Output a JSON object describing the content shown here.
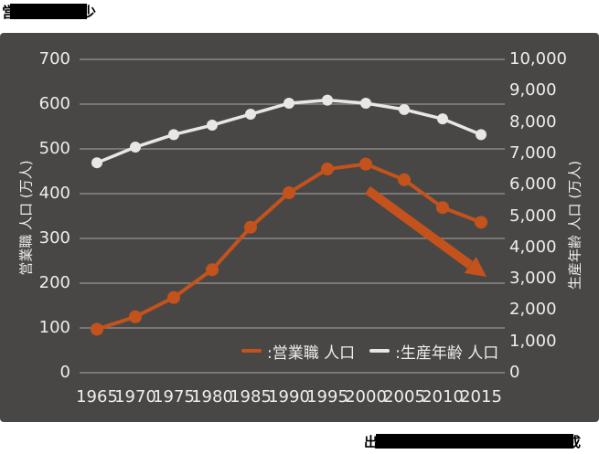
{
  "title": {
    "visible_start_char": "営",
    "visible_end_char": "少",
    "note": "title mostly covered by black redaction bar"
  },
  "source": {
    "visible_start_char": "出",
    "visible_end_char": "成",
    "note": "source line mostly covered by black redaction bar"
  },
  "colors": {
    "panel_bg": "#494745",
    "grid": "#8b8987",
    "orange_series": "#c4521c",
    "white_series": "#e9e7e5",
    "tick_text": "#efeeec",
    "redaction": "#000000"
  },
  "chart_data": {
    "type": "line",
    "categories": [
      "1965",
      "1970",
      "1975",
      "1980",
      "1985",
      "1990",
      "1995",
      "2000",
      "2005",
      "2010",
      "2015"
    ],
    "series": [
      {
        "name": "営業職 人口",
        "yaxis": "left",
        "color": "#c4521c",
        "values": [
          97,
          125,
          168,
          230,
          325,
          402,
          455,
          466,
          431,
          369,
          336
        ]
      },
      {
        "name": "生産年齢 人口",
        "yaxis": "right",
        "color": "#e9e7e5",
        "values": [
          6700,
          7200,
          7600,
          7900,
          8250,
          8600,
          8700,
          8600,
          8400,
          8100,
          7600
        ]
      }
    ],
    "left_axis": {
      "label": "営業職 人口 (万人)",
      "min": 0,
      "max": 700,
      "step": 100
    },
    "right_axis": {
      "label": "生産年齢 人口 (万人)",
      "min": 0,
      "max": 10000,
      "step": 1000
    },
    "legend": [
      {
        "label": ":営業職 人口",
        "series": 0
      },
      {
        "label": ":生産年齢 人口",
        "series": 1
      }
    ],
    "annotation": {
      "type": "arrow",
      "color": "#c4521c",
      "meaning": "emphasis on decline after 2000"
    },
    "grid": true,
    "legend_position": "inside-bottom-right"
  }
}
